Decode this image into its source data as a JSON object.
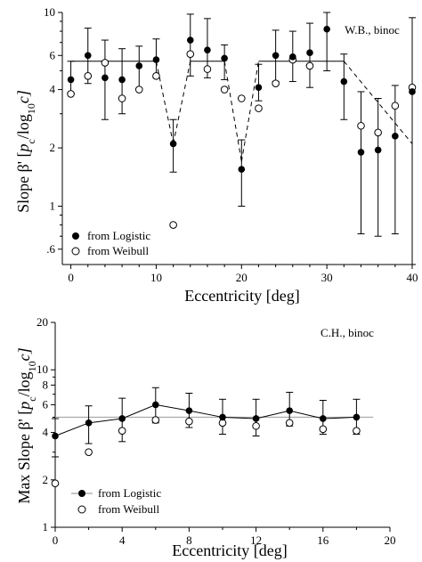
{
  "chart_data": [
    {
      "type": "scatter",
      "annotation": "W.B., binoc",
      "xlabel": "Eccentricity [deg]",
      "ylabel_main": "Slope β' [",
      "ylabel_frac": "p",
      "ylabel_sub": "c",
      "ylabel_mid": "/log",
      "ylabel_sub2": "10",
      "ylabel_end": "c]",
      "xlim": [
        -1,
        40
      ],
      "ylim": [
        0.5,
        10
      ],
      "yscale": "log",
      "xticks": [
        0,
        10,
        20,
        30,
        40
      ],
      "yticks": [
        0.6,
        1,
        2,
        4,
        6,
        10
      ],
      "ytick_labels": [
        ".6",
        "1",
        "2",
        "4",
        "6",
        "10"
      ],
      "legend": [
        {
          "name": "from Logistic",
          "marker": "filled-circle"
        },
        {
          "name": "from Weibull",
          "marker": "open-circle"
        }
      ],
      "series": [
        {
          "name": "from Logistic",
          "x": [
            0,
            2,
            4,
            6,
            8,
            10,
            12,
            14,
            16,
            18,
            20,
            22,
            24,
            26,
            28,
            30,
            32,
            34,
            36,
            38,
            40
          ],
          "y": [
            4.5,
            6.0,
            4.6,
            4.5,
            5.3,
            5.7,
            2.1,
            7.2,
            6.4,
            5.8,
            1.55,
            4.1,
            6.0,
            5.9,
            6.2,
            8.2,
            4.4,
            1.9,
            1.95,
            2.3,
            3.9
          ],
          "err_low": [
            3.8,
            4.3,
            2.8,
            3.0,
            4.0,
            4.6,
            1.5,
            4.7,
            4.6,
            4.5,
            1.0,
            3.5,
            4.4,
            4.4,
            4.1,
            5.0,
            2.8,
            0.72,
            0.7,
            0.72,
            0.5
          ],
          "err_high": [
            5.6,
            8.3,
            7.2,
            6.5,
            6.7,
            7.3,
            2.8,
            9.8,
            9.3,
            6.8,
            2.2,
            5.4,
            8.1,
            8.0,
            8.8,
            10.0,
            6.1,
            3.9,
            3.6,
            4.2,
            9.4
          ]
        },
        {
          "name": "from Weibull",
          "x": [
            0,
            2,
            4,
            6,
            8,
            10,
            12,
            14,
            16,
            18,
            20,
            22,
            24,
            26,
            28,
            30,
            32,
            34,
            36,
            38,
            40
          ],
          "y": [
            3.8,
            4.7,
            5.5,
            3.6,
            4.0,
            4.7,
            0.8,
            6.1,
            5.1,
            4.0,
            3.6,
            3.2,
            4.3,
            5.7,
            5.3,
            null,
            null,
            2.6,
            2.4,
            3.3,
            4.1
          ]
        },
        {
          "name": "fit",
          "x": [
            0,
            10,
            12,
            14,
            18,
            20,
            22,
            32,
            40
          ],
          "y": [
            5.6,
            5.6,
            2.1,
            5.6,
            5.6,
            1.7,
            5.6,
            5.6,
            2.1
          ]
        }
      ]
    },
    {
      "type": "scatter",
      "annotation": "C.H., binoc",
      "xlabel": "Eccentricity [deg]",
      "ylabel_main": "Max Slope β' [",
      "ylabel_frac": "p",
      "ylabel_sub": "c",
      "ylabel_mid": "/log",
      "ylabel_sub2": "10",
      "ylabel_end": "c]",
      "xlim": [
        0,
        20
      ],
      "ylim": [
        1,
        20
      ],
      "yscale": "log",
      "xticks": [
        0,
        4,
        8,
        12,
        16,
        20
      ],
      "yticks": [
        1,
        2,
        4,
        6,
        8,
        10,
        20
      ],
      "ytick_labels": [
        "1",
        "2",
        "4",
        "6",
        "8",
        "10",
        "20"
      ],
      "legend": [
        {
          "name": "from Logistic",
          "marker": "filled-circle-line"
        },
        {
          "name": "from Weibull",
          "marker": "open-circle"
        }
      ],
      "series": [
        {
          "name": "from Logistic",
          "x": [
            0,
            2,
            4,
            6,
            8,
            10,
            12,
            14,
            16,
            18
          ],
          "y": [
            3.8,
            4.6,
            4.9,
            6.0,
            5.5,
            5.0,
            4.9,
            5.5,
            4.9,
            5.0
          ],
          "err_low": [
            2.8,
            3.4,
            3.5,
            4.6,
            4.3,
            3.9,
            3.8,
            4.4,
            3.9,
            3.9
          ],
          "err_high": [
            4.9,
            5.9,
            6.6,
            7.7,
            7.1,
            6.5,
            6.5,
            7.2,
            6.4,
            6.5
          ]
        },
        {
          "name": "from Weibull",
          "x": [
            0,
            2,
            4,
            6,
            8,
            10,
            12,
            14,
            16,
            18
          ],
          "y": [
            1.9,
            3.0,
            4.1,
            4.8,
            4.7,
            4.6,
            4.4,
            4.6,
            4.2,
            4.1
          ]
        },
        {
          "name": "mean",
          "x": [
            0,
            19
          ],
          "y": [
            5.0,
            5.0
          ]
        }
      ]
    }
  ]
}
